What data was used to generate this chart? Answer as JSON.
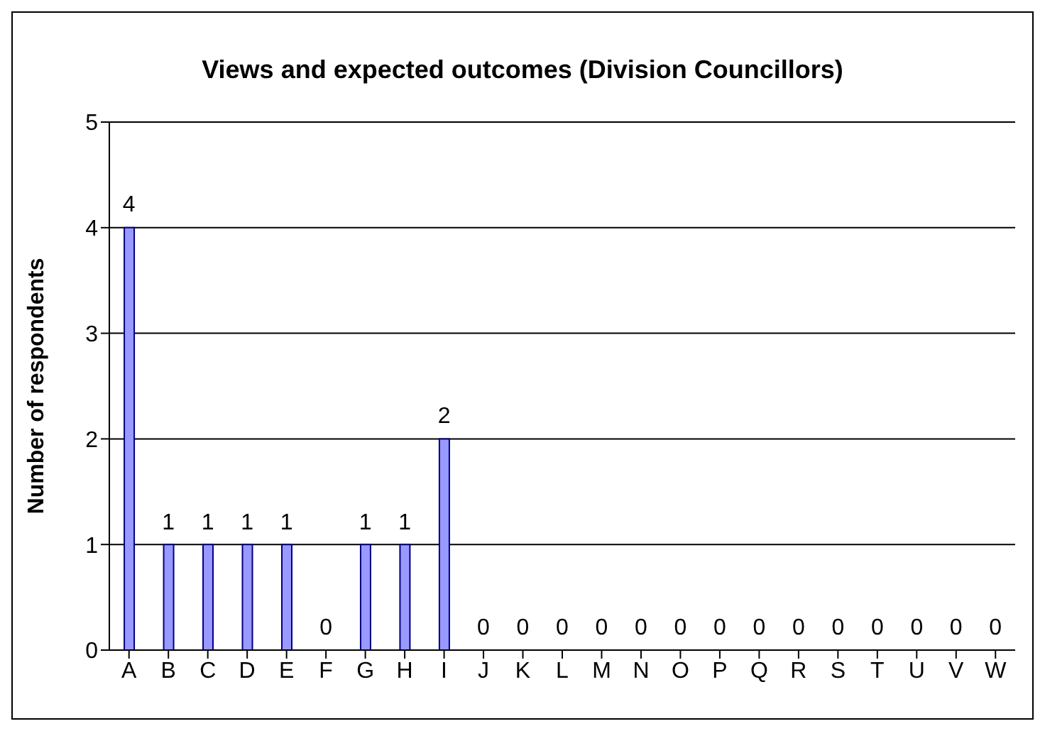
{
  "chart_data": {
    "type": "bar",
    "title": "Views and expected outcomes (Division Councillors)",
    "ylabel": "Number of respondents",
    "categories": [
      "A",
      "B",
      "C",
      "D",
      "E",
      "F",
      "G",
      "H",
      "I",
      "J",
      "K",
      "L",
      "M",
      "N",
      "O",
      "P",
      "Q",
      "R",
      "S",
      "T",
      "U",
      "V",
      "W"
    ],
    "values": [
      4,
      1,
      1,
      1,
      1,
      0,
      1,
      1,
      2,
      0,
      0,
      0,
      0,
      0,
      0,
      0,
      0,
      0,
      0,
      0,
      0,
      0,
      0
    ],
    "color": "#9999ff",
    "ylim": [
      0,
      5
    ],
    "yticks": [
      0,
      1,
      2,
      3,
      4,
      5
    ],
    "grid": "y",
    "data_labels": true
  }
}
